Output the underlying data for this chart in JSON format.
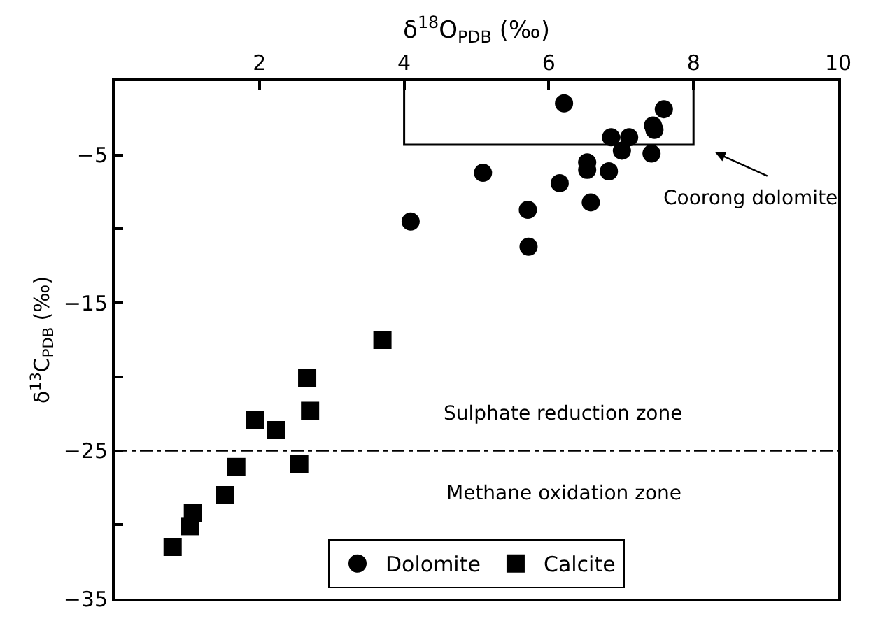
{
  "chart_data": {
    "type": "scatter",
    "xlabel": "δ$^{18}$O$_{PDB}$ (‰)",
    "ylabel": "δ$^{13}$C$_{PDB}$ (‰)",
    "xlim": [
      0,
      10
    ],
    "xticks": [
      2,
      4,
      6,
      8,
      10
    ],
    "ylim": [
      -35,
      0
    ],
    "yticks": [
      -5,
      {
        "value": -10,
        "label": null
      },
      -15,
      {
        "value": -20,
        "label": null
      },
      -25,
      {
        "value": -30,
        "label": null
      },
      -35
    ],
    "legend": "bottom",
    "series": [
      {
        "name": "Dolomite",
        "color": "#000000",
        "marker": "circle",
        "x": [
          6.21,
          7.59,
          7.44,
          7.46,
          6.86,
          7.11,
          7.01,
          7.42,
          6.53,
          6.53,
          6.83,
          5.09,
          6.15,
          6.58,
          5.71,
          4.09,
          5.72
        ],
        "values": [
          -1.5,
          -1.9,
          -3.0,
          -3.3,
          -3.8,
          -3.8,
          -4.7,
          -4.9,
          -5.5,
          -6.0,
          -6.1,
          -6.2,
          -6.9,
          -8.2,
          -8.7,
          -9.5,
          -11.2
        ]
      },
      {
        "name": "Calcite",
        "color": "#000000",
        "marker": "square",
        "x": [
          3.7,
          2.66,
          2.7,
          1.94,
          2.23,
          2.55,
          1.68,
          1.52,
          1.08,
          1.04,
          0.8
        ],
        "values": [
          -17.5,
          -20.1,
          -22.3,
          -22.9,
          -23.6,
          -25.9,
          -26.1,
          -28.0,
          -29.2,
          -30.1,
          -31.5
        ]
      },
      {
        "type": "line",
        "color": "#000000",
        "x": [
          4,
          4,
          8,
          8
        ],
        "values": [
          0,
          -4.3,
          -4.3,
          0
        ]
      }
    ],
    "ref_lines": [
      {
        "axis": "y",
        "value": -25,
        "color": "#000000",
        "line_style": "dashdot"
      }
    ],
    "annotations": [
      "Coorong dolomite",
      "Sulphate reduction zone",
      "Methane oxidation zone"
    ]
  }
}
